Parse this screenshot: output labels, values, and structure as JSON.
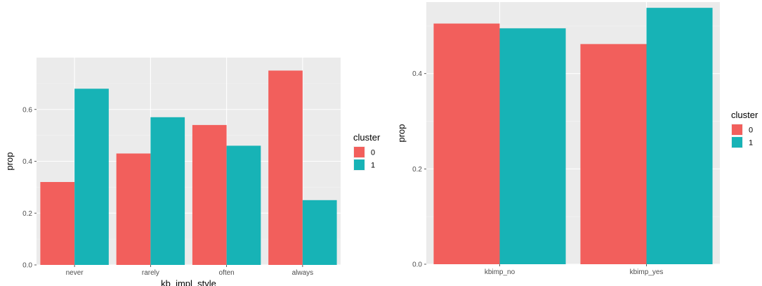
{
  "chart_data": [
    {
      "type": "bar",
      "xlabel": "kb_impl_style",
      "ylabel": "prop",
      "ylim": [
        0,
        0.8
      ],
      "yticks": [
        "0.0",
        "0.2",
        "0.4",
        "0.6"
      ],
      "categories": [
        "never",
        "rarely",
        "often",
        "always"
      ],
      "series": [
        {
          "name": "0",
          "color": "#F25F5C",
          "values": [
            0.32,
            0.43,
            0.54,
            0.75
          ]
        },
        {
          "name": "1",
          "color": "#17B3B6",
          "values": [
            0.68,
            0.57,
            0.46,
            0.25
          ]
        }
      ],
      "legend": {
        "title": "cluster",
        "position": "right"
      },
      "grid": true
    },
    {
      "type": "bar",
      "xlabel": "",
      "ylabel": "prop",
      "ylim": [
        0,
        0.55
      ],
      "yticks": [
        "0.0",
        "0.2",
        "0.4"
      ],
      "categories": [
        "kbimp_no",
        "kbimp_yes"
      ],
      "series": [
        {
          "name": "0",
          "color": "#F25F5C",
          "values": [
            0.505,
            0.462
          ]
        },
        {
          "name": "1",
          "color": "#17B3B6",
          "values": [
            0.495,
            0.538
          ]
        }
      ],
      "legend": {
        "title": "cluster",
        "position": "right"
      },
      "grid": true
    }
  ]
}
